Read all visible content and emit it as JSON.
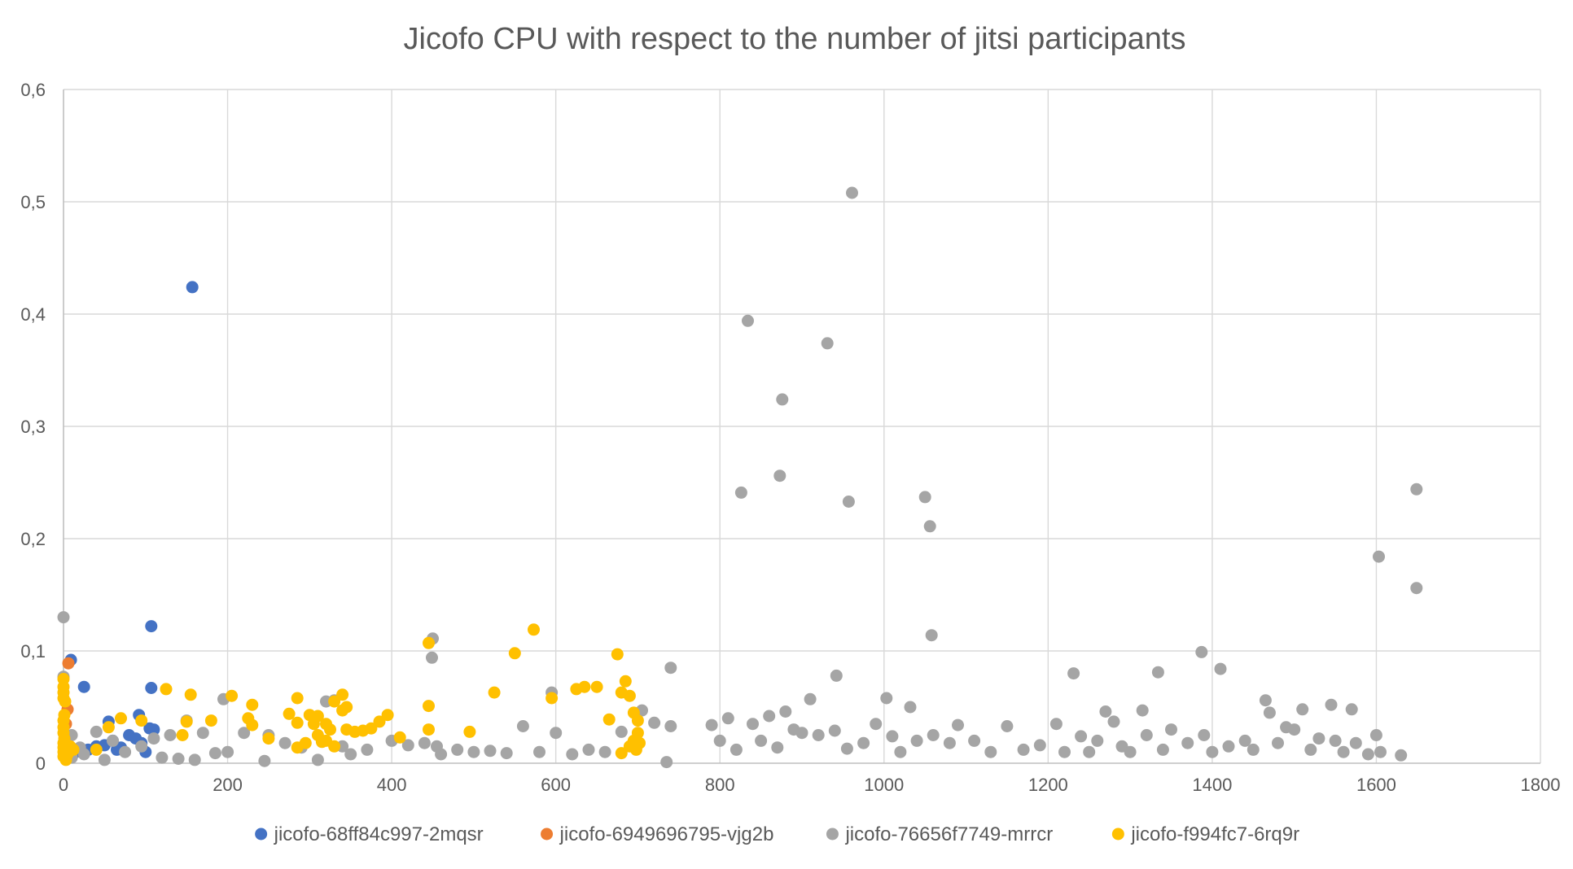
{
  "chart_data": {
    "type": "scatter",
    "title": "Jicofo CPU with respect to the number of jitsi participants",
    "xlabel": "",
    "ylabel": "",
    "xlim": [
      0,
      1800
    ],
    "ylim": [
      0,
      0.6
    ],
    "x_ticks": [
      "0",
      "200",
      "400",
      "600",
      "800",
      "1000",
      "1200",
      "1400",
      "1600",
      "1800"
    ],
    "y_ticks": [
      "0",
      "0,1",
      "0,2",
      "0,3",
      "0,4",
      "0,5",
      "0,6"
    ],
    "grid": true,
    "legend_position": "bottom",
    "series": [
      {
        "name": "jicofo-68ff84c997-2mqsr",
        "color": "#4472C4",
        "points": [
          [
            157,
            0.424
          ],
          [
            107,
            0.122
          ],
          [
            9,
            0.092
          ],
          [
            25,
            0.068
          ],
          [
            107,
            0.067
          ],
          [
            55,
            0.037
          ],
          [
            92,
            0.043
          ],
          [
            105,
            0.031
          ],
          [
            110,
            0.03
          ],
          [
            80,
            0.025
          ],
          [
            88,
            0.022
          ],
          [
            60,
            0.02
          ],
          [
            70,
            0.014
          ],
          [
            50,
            0.016
          ],
          [
            95,
            0.018
          ],
          [
            30,
            0.012
          ],
          [
            15,
            0.01
          ],
          [
            40,
            0.015
          ],
          [
            65,
            0.012
          ],
          [
            100,
            0.01
          ]
        ]
      },
      {
        "name": "jicofo-6949696795-vjg2b",
        "color": "#ED7D31",
        "points": [
          [
            6,
            0.089
          ],
          [
            5,
            0.048
          ],
          [
            3,
            0.035
          ],
          [
            2,
            0.02
          ],
          [
            4,
            0.012
          ]
        ]
      },
      {
        "name": "jicofo-76656f7749-mrrcr",
        "color": "#A5A5A5",
        "points": [
          [
            961,
            0.508
          ],
          [
            834,
            0.394
          ],
          [
            931,
            0.374
          ],
          [
            876,
            0.324
          ],
          [
            873,
            0.256
          ],
          [
            826,
            0.241
          ],
          [
            957,
            0.233
          ],
          [
            1050,
            0.237
          ],
          [
            1056,
            0.211
          ],
          [
            1058,
            0.114
          ],
          [
            1649,
            0.244
          ],
          [
            1649,
            0.156
          ],
          [
            1603,
            0.184
          ],
          [
            1387,
            0.099
          ],
          [
            1410,
            0.084
          ],
          [
            1334,
            0.081
          ],
          [
            1231,
            0.08
          ],
          [
            450,
            0.111
          ],
          [
            449,
            0.094
          ],
          [
            740,
            0.085
          ],
          [
            0,
            0.13
          ],
          [
            0,
            0.077
          ],
          [
            595,
            0.063
          ],
          [
            942,
            0.078
          ],
          [
            1003,
            0.058
          ],
          [
            1032,
            0.05
          ],
          [
            1465,
            0.056
          ],
          [
            1545,
            0.052
          ],
          [
            1510,
            0.048
          ],
          [
            1570,
            0.048
          ],
          [
            1315,
            0.047
          ],
          [
            1270,
            0.046
          ],
          [
            705,
            0.047
          ],
          [
            910,
            0.057
          ],
          [
            880,
            0.046
          ],
          [
            860,
            0.042
          ],
          [
            810,
            0.04
          ],
          [
            740,
            0.033
          ],
          [
            330,
            0.056
          ],
          [
            320,
            0.055
          ],
          [
            195,
            0.057
          ],
          [
            150,
            0.038
          ],
          [
            40,
            0.028
          ],
          [
            10,
            0.025
          ],
          [
            20,
            0.014
          ],
          [
            60,
            0.02
          ],
          [
            95,
            0.015
          ],
          [
            110,
            0.022
          ],
          [
            130,
            0.025
          ],
          [
            170,
            0.027
          ],
          [
            185,
            0.009
          ],
          [
            200,
            0.01
          ],
          [
            220,
            0.027
          ],
          [
            250,
            0.025
          ],
          [
            270,
            0.018
          ],
          [
            290,
            0.014
          ],
          [
            310,
            0.003
          ],
          [
            340,
            0.015
          ],
          [
            370,
            0.012
          ],
          [
            400,
            0.02
          ],
          [
            420,
            0.016
          ],
          [
            440,
            0.018
          ],
          [
            460,
            0.008
          ],
          [
            480,
            0.012
          ],
          [
            500,
            0.01
          ],
          [
            520,
            0.011
          ],
          [
            540,
            0.009
          ],
          [
            560,
            0.033
          ],
          [
            580,
            0.01
          ],
          [
            600,
            0.027
          ],
          [
            620,
            0.008
          ],
          [
            640,
            0.012
          ],
          [
            660,
            0.01
          ],
          [
            680,
            0.028
          ],
          [
            720,
            0.036
          ],
          [
            735,
            0.001
          ],
          [
            790,
            0.034
          ],
          [
            800,
            0.02
          ],
          [
            820,
            0.012
          ],
          [
            840,
            0.035
          ],
          [
            850,
            0.02
          ],
          [
            870,
            0.014
          ],
          [
            890,
            0.03
          ],
          [
            900,
            0.027
          ],
          [
            920,
            0.025
          ],
          [
            940,
            0.029
          ],
          [
            955,
            0.013
          ],
          [
            975,
            0.018
          ],
          [
            990,
            0.035
          ],
          [
            1010,
            0.024
          ],
          [
            1020,
            0.01
          ],
          [
            1040,
            0.02
          ],
          [
            1060,
            0.025
          ],
          [
            1080,
            0.018
          ],
          [
            1090,
            0.034
          ],
          [
            1110,
            0.02
          ],
          [
            1130,
            0.01
          ],
          [
            1150,
            0.033
          ],
          [
            1170,
            0.012
          ],
          [
            1190,
            0.016
          ],
          [
            1210,
            0.035
          ],
          [
            1220,
            0.01
          ],
          [
            1240,
            0.024
          ],
          [
            1250,
            0.01
          ],
          [
            1260,
            0.02
          ],
          [
            1280,
            0.037
          ],
          [
            1290,
            0.015
          ],
          [
            1300,
            0.01
          ],
          [
            1320,
            0.025
          ],
          [
            1340,
            0.012
          ],
          [
            1350,
            0.03
          ],
          [
            1370,
            0.018
          ],
          [
            1390,
            0.025
          ],
          [
            1400,
            0.01
          ],
          [
            1420,
            0.015
          ],
          [
            1440,
            0.02
          ],
          [
            1450,
            0.012
          ],
          [
            1470,
            0.045
          ],
          [
            1480,
            0.018
          ],
          [
            1490,
            0.032
          ],
          [
            1500,
            0.03
          ],
          [
            1520,
            0.012
          ],
          [
            1530,
            0.022
          ],
          [
            1550,
            0.02
          ],
          [
            1560,
            0.01
          ],
          [
            1575,
            0.018
          ],
          [
            1590,
            0.008
          ],
          [
            1600,
            0.025
          ],
          [
            1605,
            0.01
          ],
          [
            1630,
            0.007
          ],
          [
            10,
            0.005
          ],
          [
            25,
            0.008
          ],
          [
            50,
            0.003
          ],
          [
            75,
            0.01
          ],
          [
            120,
            0.005
          ],
          [
            140,
            0.004
          ],
          [
            160,
            0.003
          ],
          [
            245,
            0.002
          ],
          [
            350,
            0.008
          ],
          [
            455,
            0.015
          ]
        ]
      },
      {
        "name": "jicofo-f994fc7-6rq9r",
        "color": "#FFC000",
        "points": [
          [
            573,
            0.119
          ],
          [
            445,
            0.107
          ],
          [
            550,
            0.098
          ],
          [
            675,
            0.097
          ],
          [
            690,
            0.06
          ],
          [
            625,
            0.066
          ],
          [
            635,
            0.068
          ],
          [
            650,
            0.068
          ],
          [
            685,
            0.073
          ],
          [
            680,
            0.063
          ],
          [
            525,
            0.063
          ],
          [
            125,
            0.066
          ],
          [
            155,
            0.061
          ],
          [
            205,
            0.06
          ],
          [
            285,
            0.058
          ],
          [
            595,
            0.058
          ],
          [
            340,
            0.061
          ],
          [
            330,
            0.055
          ],
          [
            230,
            0.052
          ],
          [
            445,
            0.051
          ],
          [
            345,
            0.05
          ],
          [
            340,
            0.047
          ],
          [
            395,
            0.043
          ],
          [
            275,
            0.044
          ],
          [
            300,
            0.043
          ],
          [
            310,
            0.042
          ],
          [
            665,
            0.039
          ],
          [
            700,
            0.038
          ],
          [
            695,
            0.045
          ],
          [
            150,
            0.037
          ],
          [
            70,
            0.04
          ],
          [
            95,
            0.038
          ],
          [
            180,
            0.038
          ],
          [
            225,
            0.04
          ],
          [
            285,
            0.036
          ],
          [
            305,
            0.035
          ],
          [
            320,
            0.035
          ],
          [
            325,
            0.03
          ],
          [
            355,
            0.028
          ],
          [
            365,
            0.029
          ],
          [
            375,
            0.031
          ],
          [
            385,
            0.037
          ],
          [
            55,
            0.032
          ],
          [
            145,
            0.025
          ],
          [
            230,
            0.034
          ],
          [
            250,
            0.022
          ],
          [
            285,
            0.014
          ],
          [
            295,
            0.018
          ],
          [
            310,
            0.025
          ],
          [
            315,
            0.019
          ],
          [
            320,
            0.02
          ],
          [
            330,
            0.015
          ],
          [
            345,
            0.03
          ],
          [
            410,
            0.023
          ],
          [
            445,
            0.03
          ],
          [
            495,
            0.028
          ],
          [
            680,
            0.009
          ],
          [
            690,
            0.015
          ],
          [
            695,
            0.02
          ],
          [
            700,
            0.027
          ],
          [
            698,
            0.012
          ],
          [
            702,
            0.018
          ],
          [
            0,
            0.075
          ],
          [
            0,
            0.068
          ],
          [
            0,
            0.063
          ],
          [
            0,
            0.058
          ],
          [
            2,
            0.055
          ],
          [
            1,
            0.043
          ],
          [
            0,
            0.038
          ],
          [
            0,
            0.032
          ],
          [
            0,
            0.027
          ],
          [
            1,
            0.022
          ],
          [
            0,
            0.018
          ],
          [
            0,
            0.014
          ],
          [
            0,
            0.01
          ],
          [
            0,
            0.006
          ],
          [
            3,
            0.003
          ],
          [
            5,
            0.008
          ],
          [
            8,
            0.015
          ],
          [
            12,
            0.012
          ],
          [
            40,
            0.012
          ]
        ]
      }
    ]
  }
}
